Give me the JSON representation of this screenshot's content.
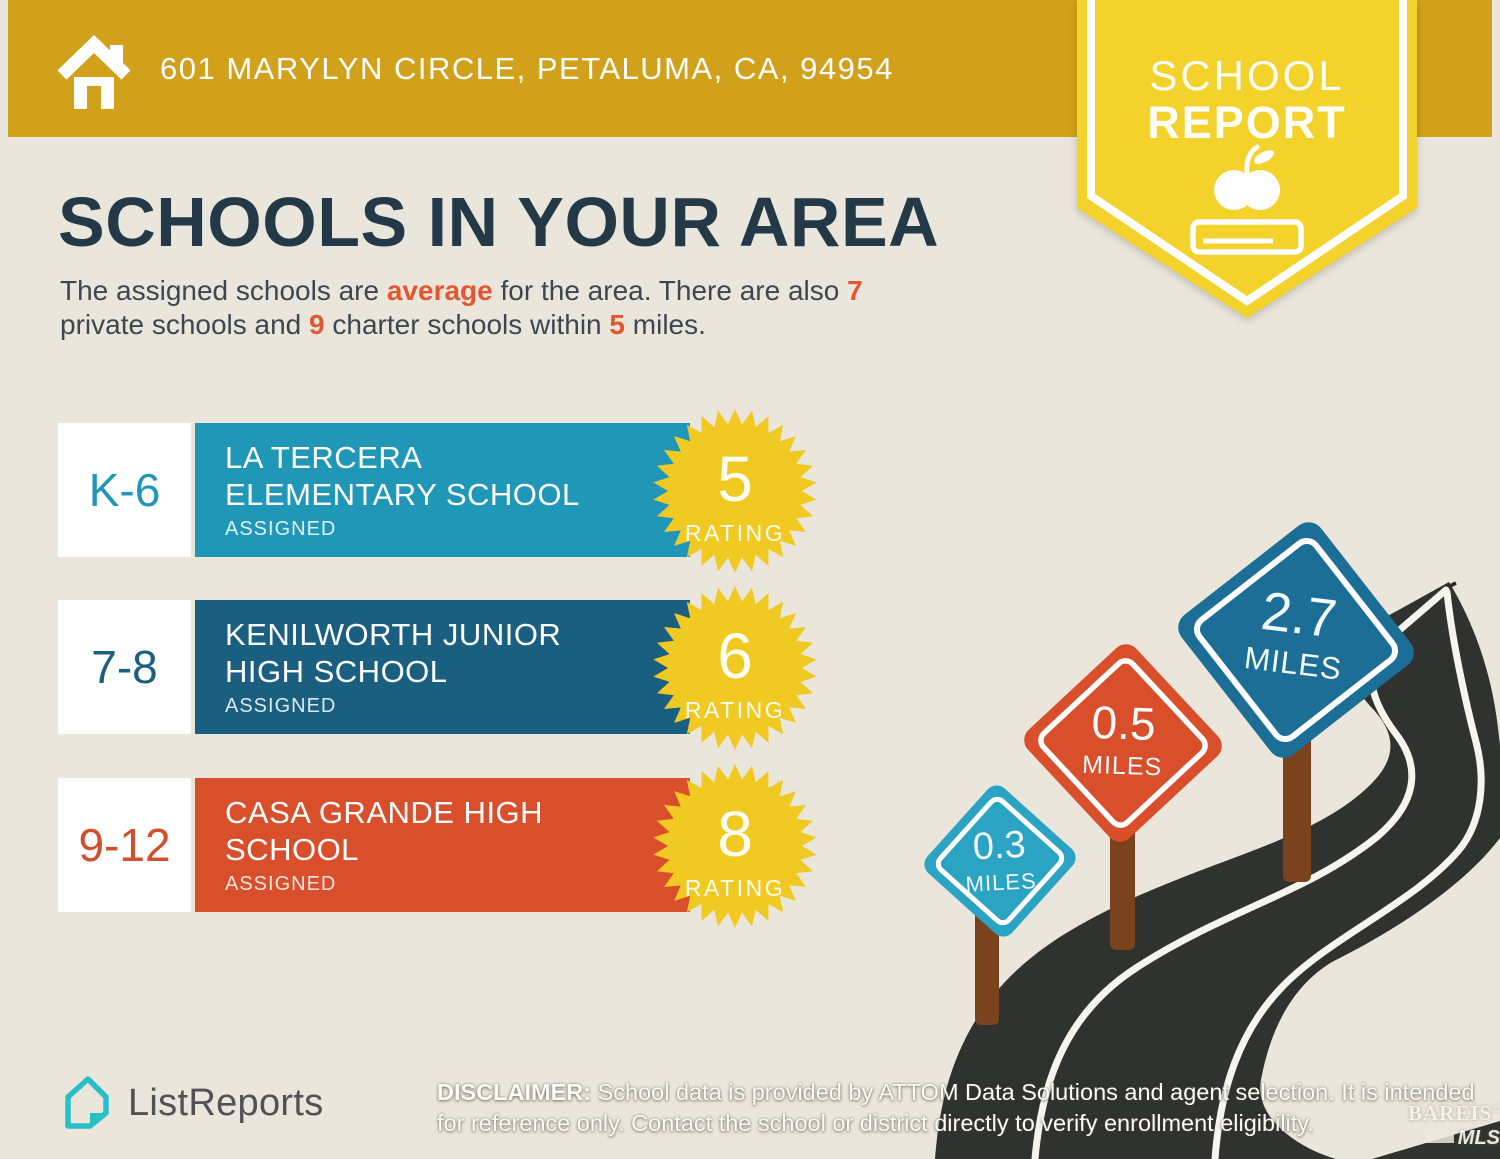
{
  "header": {
    "address": "601 MARYLYN CIRCLE, PETALUMA, CA, 94954"
  },
  "ribbon": {
    "line1": "SCHOOL",
    "line2": "REPORT"
  },
  "title": "SCHOOLS IN YOUR AREA",
  "intro_segments": [
    {
      "t": "The assigned schools are "
    },
    {
      "t": "average",
      "hl": true
    },
    {
      "t": " for the area. There are also "
    },
    {
      "t": "7",
      "hl": true
    },
    {
      "br": true
    },
    {
      "t": "private schools and "
    },
    {
      "t": "9",
      "hl": true
    },
    {
      "t": " charter schools within "
    },
    {
      "t": "5",
      "hl": true
    },
    {
      "t": " miles."
    }
  ],
  "schools": [
    {
      "grades": "K-6",
      "name": "LA TERCERA\nELEMENTARY SCHOOL",
      "status": "ASSIGNED",
      "rating": "5",
      "rating_label": "RATING",
      "bar_color": "#2197B8"
    },
    {
      "grades": "7-8",
      "name": "KENILWORTH JUNIOR\nHIGH SCHOOL",
      "status": "ASSIGNED",
      "rating": "6",
      "rating_label": "RATING",
      "bar_color": "#1A5F80"
    },
    {
      "grades": "9-12",
      "name": "CASA GRANDE HIGH\nSCHOOL",
      "status": "ASSIGNED",
      "rating": "8",
      "rating_label": "RATING",
      "bar_color": "#D94F2B"
    }
  ],
  "signs": [
    {
      "distance": "0.3",
      "unit": "MILES",
      "color": "#2BA3C2"
    },
    {
      "distance": "0.5",
      "unit": "MILES",
      "color": "#D94F2B"
    },
    {
      "distance": "2.7",
      "unit": "MILES",
      "color": "#1D6E96"
    }
  ],
  "disclaimer_segments": [
    {
      "t": "DISCLAIMER:",
      "b": true
    },
    {
      "t": " School data is provided by ATTOM Data Solutions and agent selection. It is intended"
    },
    {
      "br": true
    },
    {
      "t": "for reference only. Contact the school or district directly to verify enrollment eligibility."
    }
  ],
  "logo": {
    "text": "ListReports"
  },
  "watermark": {
    "line1": "BAREIS",
    "reg": "®",
    "line2": "MLS"
  },
  "colors": {
    "header_gold": "#D1A11B",
    "ribbon_yellow": "#F3D22B",
    "starburst_yellow": "#F0CA22",
    "teal": "#2197B8",
    "dark_blue": "#1A5F80",
    "red_orange": "#D94F2B",
    "heading_navy": "#233947",
    "highlight_orange": "#E2572F",
    "road_asphalt": "#303230",
    "post_brown": "#7A431D",
    "background": "#EAE6DC",
    "logo_teal": "#29BFC6"
  }
}
